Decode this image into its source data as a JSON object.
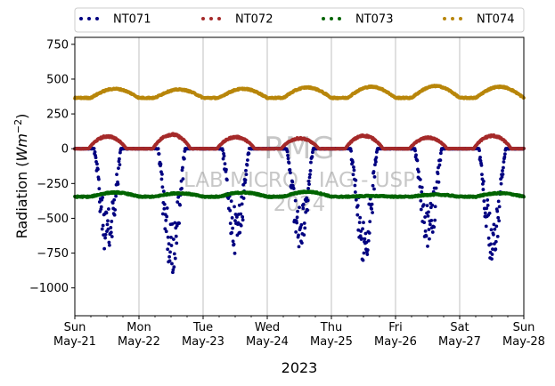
{
  "chart_data": {
    "type": "scatter",
    "title": "",
    "xlabel": "2023",
    "ylabel_prefix": "Radiation (",
    "ylabel_unit": "Wm",
    "ylabel_exp": "−2",
    "ylabel_suffix": ")",
    "ylim": [
      -1200,
      800
    ],
    "yticks": [
      750,
      500,
      250,
      0,
      -250,
      -500,
      -750,
      -1000
    ],
    "ytick_labels": [
      "750",
      "500",
      "250",
      "0",
      "−250",
      "−500",
      "−750",
      "−1000"
    ],
    "xlim": [
      "2023-05-21",
      "2023-05-28"
    ],
    "xticks": [
      {
        "day": "Sun",
        "date": "May-21"
      },
      {
        "day": "Mon",
        "date": "May-22"
      },
      {
        "day": "Tue",
        "date": "May-23"
      },
      {
        "day": "Wed",
        "date": "May-24"
      },
      {
        "day": "Thu",
        "date": "May-25"
      },
      {
        "day": "Fri",
        "date": "May-26"
      },
      {
        "day": "Sat",
        "date": "May-27"
      },
      {
        "day": "Sun",
        "date": "May-28"
      }
    ],
    "grid": "x-major",
    "legend_position": "top",
    "series": [
      {
        "name": "NT071",
        "color": "#000080",
        "night_level": 0,
        "daily_min": [
          -790,
          -900,
          -760,
          -750,
          -830,
          -730,
          -830
        ]
      },
      {
        "name": "NT072",
        "color": "#a52a2a",
        "night_level": 0,
        "daily_peak": [
          95,
          110,
          90,
          80,
          100,
          85,
          100
        ]
      },
      {
        "name": "NT073",
        "color": "#006400",
        "night_level": -345,
        "daily_peak": [
          -315,
          -320,
          -315,
          -310,
          -340,
          -330,
          -320
        ]
      },
      {
        "name": "NT074",
        "color": "#b8860b",
        "night_level": 365,
        "daily_peak": [
          430,
          425,
          430,
          440,
          445,
          450,
          445
        ]
      }
    ],
    "watermark": {
      "line1": "RMG",
      "line2": "LAB MICRO - IAG - USP",
      "line3": "2024"
    }
  }
}
